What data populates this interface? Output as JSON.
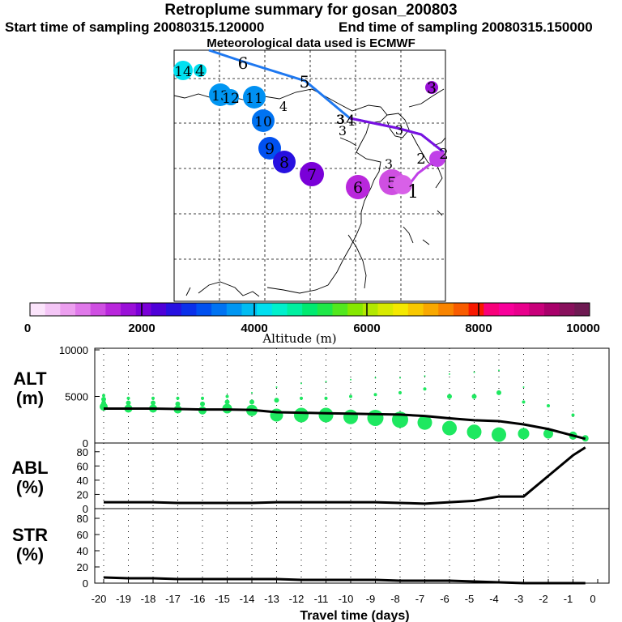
{
  "header": {
    "title": "Retroplume summary for gosan_200803",
    "start": "Start time of sampling 20080315.120000",
    "end": "End time of sampling 20080315.150000",
    "met": "Meteorological data used is ECMWF"
  },
  "colorbar": {
    "label": "Altitude (m)",
    "ticks": [
      "0",
      "2000",
      "4000",
      "6000",
      "8000",
      "10000"
    ],
    "colors": [
      "#fbe4fb",
      "#f4c6f6",
      "#ec9fef",
      "#e079ea",
      "#cf4fe2",
      "#b927dc",
      "#9a10d8",
      "#7a00d8",
      "#4e00d8",
      "#2710e0",
      "#0a30ea",
      "#0050f0",
      "#0073f2",
      "#0096f2",
      "#00bcf2",
      "#00dff0",
      "#00f0cc",
      "#00f0a0",
      "#00ea70",
      "#1ee848",
      "#52e81e",
      "#86e800",
      "#b2e800",
      "#d8ea00",
      "#f4e800",
      "#f8c800",
      "#f8a800",
      "#f88400",
      "#f85c00",
      "#f81800",
      "#f8007a",
      "#f8009a",
      "#e8008c",
      "#c8007a",
      "#a8006a",
      "#88105c",
      "#6e1a52"
    ]
  },
  "map": {
    "labels": [
      {
        "t": "6",
        "c": "#00e0ee",
        "size": 20
      },
      {
        "t": "5",
        "c": "#00e0ee",
        "size": 20
      },
      {
        "t": "4",
        "c": "#00e0ee",
        "size": 18
      },
      {
        "t": "3",
        "c": "#00e0ee",
        "size": 16
      },
      {
        "t": "2",
        "c": "#00e0ee",
        "size": 18
      },
      {
        "t": "3",
        "c": "#e080e8",
        "size": 16
      },
      {
        "t": "3",
        "c": "#7a00d8",
        "size": 16
      },
      {
        "t": "3",
        "c": "#c8e800",
        "size": 16
      },
      {
        "t": "4",
        "c": "#4e00d8",
        "size": 16
      },
      {
        "t": "1",
        "c": "#d050e0",
        "size": 22
      },
      {
        "t": "2",
        "c": "#c040e0",
        "size": 18
      },
      {
        "t": "3",
        "c": "#00c8a0",
        "size": 16
      }
    ],
    "bubbles": [
      {
        "t": "14",
        "c": "#00e0f0",
        "r": 12
      },
      {
        "t": "4",
        "c": "#00e0f0",
        "r": 8
      },
      {
        "t": "13",
        "c": "#0096f2",
        "r": 14
      },
      {
        "t": "12",
        "c": "#0096f2",
        "r": 10
      },
      {
        "t": "11",
        "c": "#0090f2",
        "r": 14
      },
      {
        "t": "10",
        "c": "#0073f2",
        "r": 14
      },
      {
        "t": "9",
        "c": "#0050f0",
        "r": 14
      },
      {
        "t": "8",
        "c": "#2710e0",
        "r": 14
      },
      {
        "t": "7",
        "c": "#7a00d8",
        "r": 15
      },
      {
        "t": "6",
        "c": "#b927dc",
        "r": 15
      },
      {
        "t": "5",
        "c": "#cf4fe2",
        "r": 16
      },
      {
        "t": "3",
        "c": "#9a10d8",
        "r": 8
      }
    ]
  },
  "chart_data": [
    {
      "type": "line",
      "title": "ALT (m)",
      "panel_label_1": "ALT",
      "panel_label_2": "(m)",
      "ylim": [
        0,
        10000
      ],
      "yticks": [
        "0",
        "5000",
        "10000"
      ],
      "x": [
        -20,
        -19,
        -18,
        -17,
        -16,
        -15,
        -14,
        -13,
        -12,
        -11,
        -10,
        -9,
        -8,
        -7,
        -6,
        -5,
        -4,
        -3,
        -2,
        -1,
        -0.5
      ],
      "values": [
        3700,
        3700,
        3700,
        3650,
        3600,
        3600,
        3550,
        3300,
        3250,
        3200,
        3150,
        3100,
        3050,
        2900,
        2650,
        2450,
        2350,
        2000,
        1500,
        800,
        450
      ],
      "dots": [
        {
          "x": -20,
          "r": [
            5,
            3,
            3,
            2
          ]
        },
        {
          "x": -19,
          "r": [
            5,
            3,
            2
          ]
        },
        {
          "x": -18,
          "r": [
            5,
            3,
            2
          ]
        },
        {
          "x": -17,
          "r": [
            5,
            3,
            2
          ]
        },
        {
          "x": -16,
          "r": [
            5,
            3,
            2
          ]
        },
        {
          "x": -15,
          "r": [
            6,
            3,
            2
          ]
        },
        {
          "x": -14,
          "r": [
            7,
            3,
            1
          ]
        },
        {
          "x": -13,
          "r": [
            8,
            3,
            1
          ]
        },
        {
          "x": -12,
          "r": [
            9,
            2,
            1
          ]
        },
        {
          "x": -11,
          "r": [
            9,
            2,
            1
          ]
        },
        {
          "x": -10,
          "r": [
            9,
            2,
            1
          ]
        },
        {
          "x": -9,
          "r": [
            10,
            2,
            1
          ]
        },
        {
          "x": -8,
          "r": [
            10,
            2,
            1
          ]
        },
        {
          "x": -7,
          "r": [
            9,
            2,
            1
          ]
        },
        {
          "x": -6,
          "r": [
            9,
            3,
            1
          ]
        },
        {
          "x": -5,
          "r": [
            9,
            3,
            1
          ]
        },
        {
          "x": -4,
          "r": [
            9,
            3,
            1
          ]
        },
        {
          "x": -3,
          "r": [
            7,
            2,
            1
          ]
        },
        {
          "x": -2,
          "r": [
            6,
            2
          ]
        },
        {
          "x": -1,
          "r": [
            5,
            2
          ]
        },
        {
          "x": -0.5,
          "r": [
            4
          ]
        }
      ],
      "dot_alts": [
        [
          3900,
          4300,
          4700,
          5100
        ],
        [
          3700,
          4300,
          4800
        ],
        [
          3700,
          4300,
          4800
        ],
        [
          3600,
          4200,
          4800
        ],
        [
          3500,
          4200,
          4800
        ],
        [
          3700,
          4400,
          5000
        ],
        [
          3500,
          4400,
          5400
        ],
        [
          3000,
          4600,
          6000
        ],
        [
          3000,
          4800,
          6400
        ],
        [
          3000,
          4800,
          6600
        ],
        [
          2800,
          5000,
          6800
        ],
        [
          2700,
          5200,
          7000
        ],
        [
          2500,
          5400,
          7000
        ],
        [
          2200,
          5800,
          7200
        ],
        [
          1600,
          5000,
          7400
        ],
        [
          1200,
          5000,
          7600
        ],
        [
          900,
          5400,
          7800
        ],
        [
          1000,
          4400,
          6000
        ],
        [
          1000,
          4000
        ],
        [
          800,
          3000
        ],
        [
          500
        ]
      ]
    },
    {
      "type": "line",
      "title": "ABL (%)",
      "panel_label_1": "ABL",
      "panel_label_2": "(%)",
      "ylim": [
        0,
        90
      ],
      "yticks": [
        "0",
        "20",
        "40",
        "60",
        "80"
      ],
      "x": [
        -20,
        -19,
        -18,
        -17,
        -16,
        -15,
        -14,
        -13,
        -12,
        -11,
        -10,
        -9,
        -8,
        -7,
        -6,
        -5,
        -4,
        -3,
        -2,
        -1,
        -0.5
      ],
      "values": [
        9,
        9,
        9,
        8,
        8,
        8,
        8,
        9,
        9,
        9,
        9,
        9,
        8,
        7,
        9,
        11,
        17,
        17,
        46,
        75,
        86
      ]
    },
    {
      "type": "line",
      "title": "STR (%)",
      "panel_label_1": "STR",
      "panel_label_2": "(%)",
      "ylim": [
        0,
        90
      ],
      "yticks": [
        "0",
        "20",
        "40",
        "60",
        "80"
      ],
      "x": [
        -20,
        -19,
        -18,
        -17,
        -16,
        -15,
        -14,
        -13,
        -12,
        -11,
        -10,
        -9,
        -8,
        -7,
        -6,
        -5,
        -4,
        -3,
        -2,
        -1,
        -0.5
      ],
      "values": [
        7,
        6,
        6,
        5,
        5,
        5,
        5,
        5,
        4,
        4,
        4,
        4,
        3,
        3,
        3,
        2,
        1,
        0,
        0,
        0,
        0
      ],
      "xlabel": "Travel time (days)",
      "xticks": [
        "-20",
        "-19",
        "-18",
        "-17",
        "-16",
        "-15",
        "-14",
        "-13",
        "-12",
        "-11",
        "-10",
        "-9",
        "-8",
        "-7",
        "-6",
        "-5",
        "-4",
        "-3",
        "-2",
        "-1",
        "0"
      ]
    }
  ]
}
